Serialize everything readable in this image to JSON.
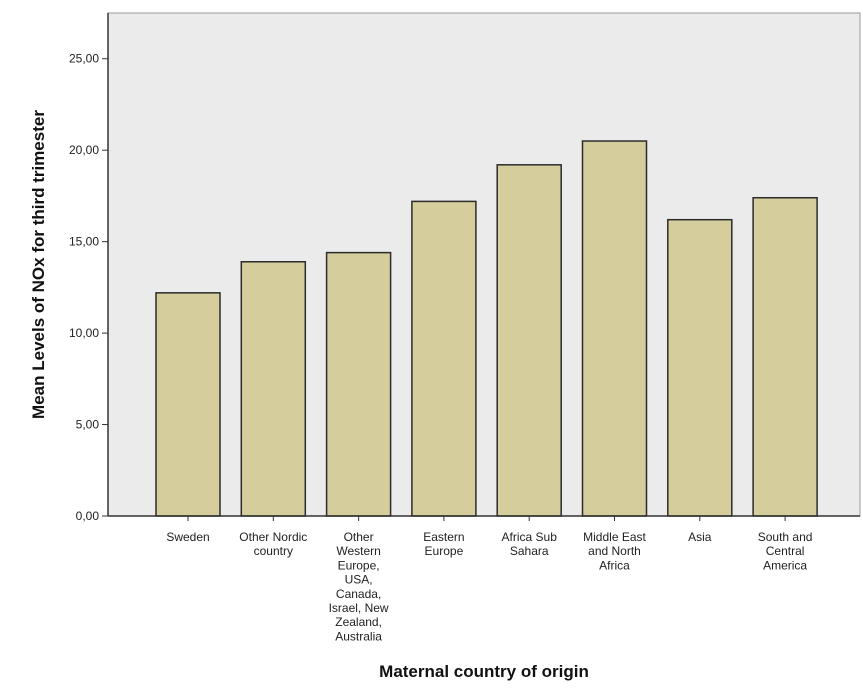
{
  "chart_data": {
    "type": "bar",
    "title": "",
    "xlabel": "Maternal country of origin",
    "ylabel": "Mean Levels of NOx for third trimester",
    "ylim": [
      0,
      27.5
    ],
    "yticks": [
      "0,00",
      "5,00",
      "10,00",
      "15,00",
      "20,00",
      "25,00"
    ],
    "ytick_values": [
      0,
      5,
      10,
      15,
      20,
      25
    ],
    "categories": [
      [
        "Sweden"
      ],
      [
        "Other Nordic",
        "country"
      ],
      [
        "Other",
        "Western",
        "Europe,",
        "USA,",
        "Canada,",
        "Israel, New",
        "Zealand,",
        "Australia"
      ],
      [
        "Eastern",
        "Europe"
      ],
      [
        "Africa Sub",
        "Sahara"
      ],
      [
        "Middle East",
        "and North",
        "Africa"
      ],
      [
        "Asia"
      ],
      [
        "South and",
        "Central",
        "America"
      ]
    ],
    "values": [
      12.2,
      13.9,
      14.4,
      17.2,
      19.2,
      20.5,
      16.2,
      17.4
    ],
    "grid": false,
    "colors": {
      "bar_fill": "#d5cd9b",
      "bar_stroke": "#2b2b2b",
      "plot_background": "#ebebeb",
      "axis": "#333333"
    }
  }
}
